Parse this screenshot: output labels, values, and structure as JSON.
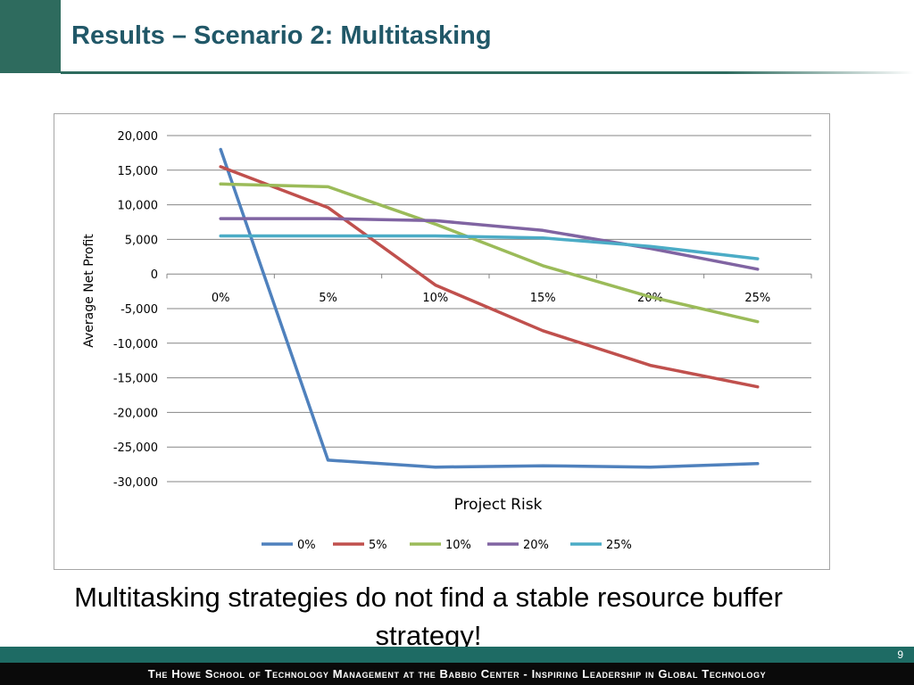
{
  "slide": {
    "title": "Results – Scenario 2: Multitasking",
    "caption": "Multitasking strategies do not find a stable resource buffer strategy!",
    "page_number": "9",
    "footer": "The Howe School of Technology Management at the Babbio Center - Inspiring Leadership in Global Technology"
  },
  "colors": {
    "title": "#215868",
    "accent_green": "#2e6b5e",
    "footer_teal": "#1e6b64",
    "footer_black": "#0a0a0a"
  },
  "chart_data": {
    "type": "line",
    "title": "",
    "xlabel": "Project Risk",
    "ylabel": "Average Net Profit",
    "categories": [
      "0%",
      "5%",
      "10%",
      "15%",
      "20%",
      "25%"
    ],
    "ylim": [
      -30000,
      20000
    ],
    "yticks": [
      20000,
      15000,
      10000,
      5000,
      0,
      -5000,
      -10000,
      -15000,
      -20000,
      -25000,
      -30000
    ],
    "ytick_labels": [
      "20,000",
      "15,000",
      "10,000",
      "5,000",
      "0",
      "-5,000",
      "-10,000",
      "-15,000",
      "-20,000",
      "-25,000",
      "-30,000"
    ],
    "grid": true,
    "legend_position": "bottom",
    "series": [
      {
        "name": "0%",
        "color": "#4f81bd",
        "values": [
          18000,
          -26900,
          -27900,
          -27700,
          -27900,
          -27400
        ]
      },
      {
        "name": "5%",
        "color": "#c0504d",
        "values": [
          15500,
          9600,
          -1600,
          -8200,
          -13200,
          -16300
        ]
      },
      {
        "name": "10%",
        "color": "#9bbb59",
        "values": [
          13000,
          12600,
          7200,
          1200,
          -3300,
          -6900
        ]
      },
      {
        "name": "20%",
        "color": "#8064a2",
        "values": [
          8000,
          8000,
          7700,
          6300,
          3700,
          700
        ]
      },
      {
        "name": "25%",
        "color": "#4bacc6",
        "values": [
          5500,
          5500,
          5500,
          5200,
          4000,
          2200
        ]
      }
    ]
  }
}
